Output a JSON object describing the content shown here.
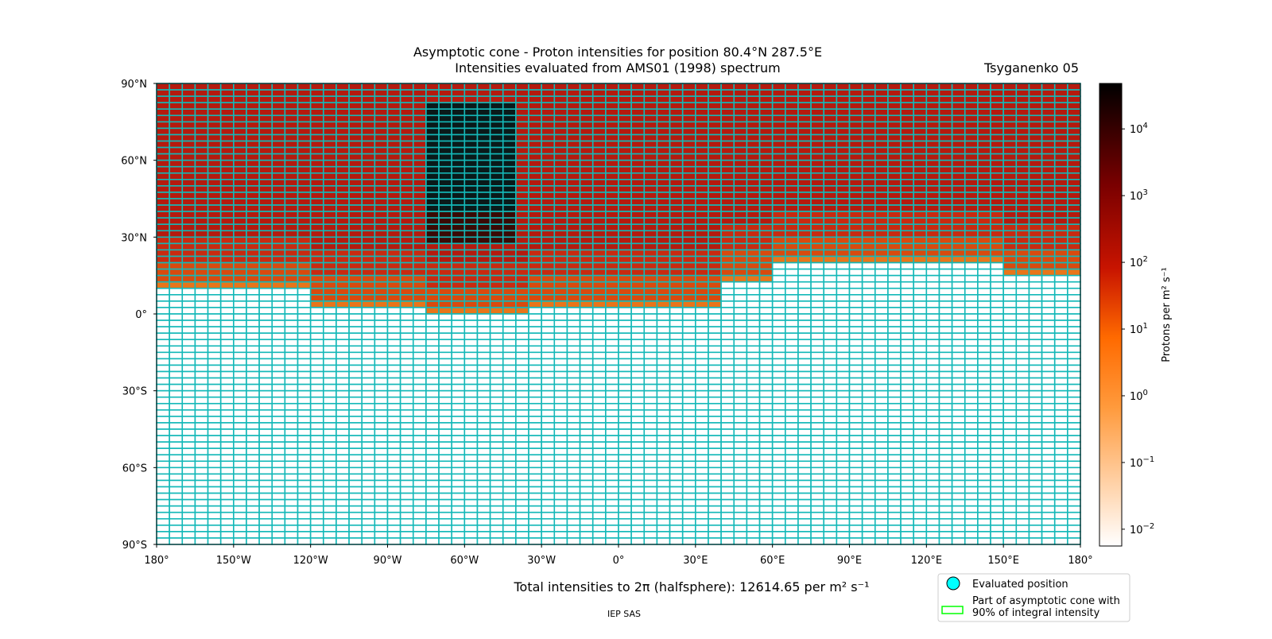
{
  "chart_data": {
    "type": "map",
    "title": [
      "Asymptotic cone - Proton intensities for position 80.4°N 287.5°E",
      "Intensities evaluated from AMS01 (1998) spectrum"
    ],
    "model": "Tsyganenko 05",
    "xlim": [
      -180,
      180
    ],
    "ylim": [
      -90,
      90
    ],
    "xticks": [
      {
        "value": -180,
        "label": "180°"
      },
      {
        "value": -150,
        "label": "150°W"
      },
      {
        "value": -120,
        "label": "120°W"
      },
      {
        "value": -90,
        "label": "90°W"
      },
      {
        "value": -60,
        "label": "60°W"
      },
      {
        "value": -30,
        "label": "30°W"
      },
      {
        "value": 0,
        "label": "0°"
      },
      {
        "value": 30,
        "label": "30°E"
      },
      {
        "value": 60,
        "label": "60°E"
      },
      {
        "value": 90,
        "label": "90°E"
      },
      {
        "value": 120,
        "label": "120°E"
      },
      {
        "value": 150,
        "label": "150°E"
      },
      {
        "value": 180,
        "label": "180°"
      }
    ],
    "yticks": [
      {
        "value": -90,
        "label": "90°S"
      },
      {
        "value": -60,
        "label": "60°S"
      },
      {
        "value": -30,
        "label": "30°S"
      },
      {
        "value": 0,
        "label": "0°"
      },
      {
        "value": 30,
        "label": "30°N"
      },
      {
        "value": 60,
        "label": "60°N"
      },
      {
        "value": 90,
        "label": "90°N"
      }
    ],
    "colorbar": {
      "label": "Protons per m² s⁻¹",
      "log": true,
      "lim": [
        0.0056,
        48000
      ],
      "ticks": [
        {
          "value": 0.01,
          "label": {
            "base": "10",
            "exp": "−2"
          }
        },
        {
          "value": 0.1,
          "label": {
            "base": "10",
            "exp": "−1"
          }
        },
        {
          "value": 1,
          "label": {
            "base": "10",
            "exp": "0"
          }
        },
        {
          "value": 10,
          "label": {
            "base": "10",
            "exp": "1"
          }
        },
        {
          "value": 100,
          "label": {
            "base": "10",
            "exp": "2"
          }
        },
        {
          "value": 1000,
          "label": {
            "base": "10",
            "exp": "3"
          }
        },
        {
          "value": 10000,
          "label": {
            "base": "10",
            "exp": "4"
          }
        }
      ]
    },
    "summary": "Total intensities to 2π (halfsphere): 12614.65 per m² s⁻¹",
    "legend": [
      {
        "name": [
          "Evaluated position"
        ],
        "color": "#00ffff"
      },
      {
        "name": [
          "Part of asymptotic cone with",
          "90% of integral intensity"
        ],
        "color": "#00ff00"
      }
    ],
    "credit": "IEP SAS"
  }
}
